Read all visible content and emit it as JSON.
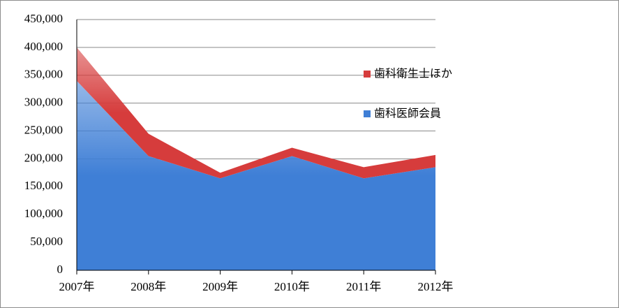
{
  "chart_data": {
    "type": "stacked-area",
    "categories": [
      "2007年",
      "2008年",
      "2009年",
      "2010年",
      "2011年",
      "2012年"
    ],
    "series": [
      {
        "name": "歯科医師会員",
        "color": "#3f7fd6",
        "values": [
          340000,
          205000,
          165000,
          205000,
          165000,
          185000
        ]
      },
      {
        "name": "歯科衛生士ほか",
        "color": "#d63c3c",
        "values": [
          60000,
          40000,
          10000,
          15000,
          20000,
          22000
        ]
      }
    ],
    "ylim": [
      0,
      450000
    ],
    "yticks": [
      0,
      {
        "value": 50000,
        "label": "50,000"
      },
      {
        "value": 100000,
        "label": "100,000"
      },
      {
        "value": 150000,
        "label": "150,000"
      },
      {
        "value": 200000,
        "label": "200,000"
      },
      {
        "value": 250000,
        "label": "250,000"
      },
      {
        "value": 300000,
        "label": "300,000"
      },
      {
        "value": 350000,
        "label": "350,000"
      },
      {
        "value": 400000,
        "label": "400,000"
      },
      {
        "value": 450000,
        "label": "450,000"
      }
    ],
    "grid": true,
    "legend": "right"
  }
}
